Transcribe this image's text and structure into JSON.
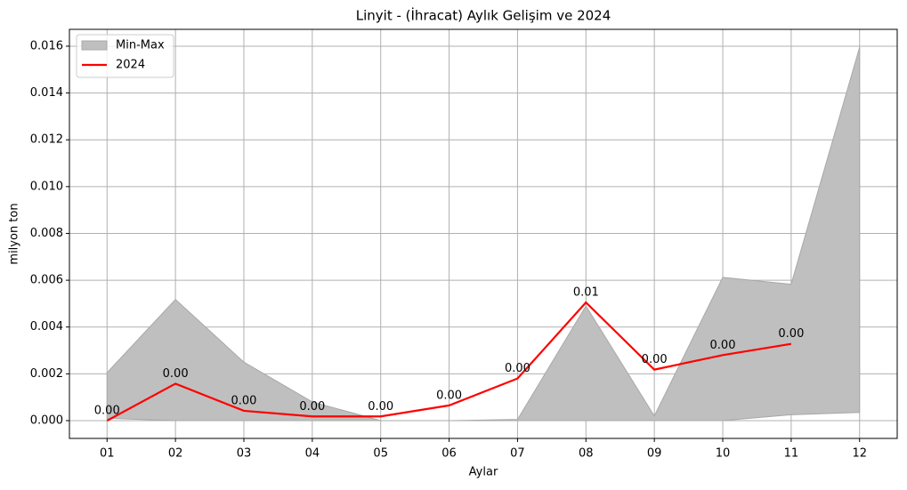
{
  "chart_data": {
    "type": "line",
    "title": "Linyit - (İhracat) Aylık Gelişim ve 2024",
    "xlabel": "Aylar",
    "ylabel": "milyon ton",
    "categories": [
      "01",
      "02",
      "03",
      "04",
      "05",
      "06",
      "07",
      "08",
      "09",
      "10",
      "11",
      "12"
    ],
    "series": [
      {
        "name": "Min-Max",
        "kind": "band",
        "color": "#bfbfbf",
        "edge": "#a8a8a8",
        "lower": [
          0.0001,
          0,
          0,
          0,
          0,
          0,
          0,
          0,
          0,
          0,
          0.00025,
          0.00035
        ],
        "values": [
          0.00205,
          0.00518,
          0.0025,
          0.0008,
          0,
          0,
          5e-05,
          0.0049,
          0.0002,
          0.00612,
          0.00583,
          0.01595
        ]
      },
      {
        "name": "2024",
        "kind": "line",
        "color": "#ff0000",
        "values": [
          0.0,
          0.00158,
          0.00042,
          0.00018,
          0.00018,
          0.00065,
          0.0018,
          0.00505,
          0.00218,
          0.0028,
          0.00328,
          null
        ],
        "value_labels": [
          "0.00",
          "0.00",
          "0.00",
          "0.00",
          "0.00",
          "0.00",
          "0.00",
          "0.01",
          "0.00",
          "0.00",
          "0.00",
          null
        ]
      }
    ],
    "ylim": [
      -0.00076,
      0.01672
    ],
    "yticks": [
      {
        "value": 0,
        "label": "0.000"
      },
      {
        "value": 0.002,
        "label": "0.002"
      },
      {
        "value": 0.004,
        "label": "0.004"
      },
      {
        "value": 0.006,
        "label": "0.006"
      },
      {
        "value": 0.008,
        "label": "0.008"
      },
      {
        "value": 0.01,
        "label": "0.010"
      },
      {
        "value": 0.012,
        "label": "0.012"
      },
      {
        "value": 0.014,
        "label": "0.014"
      },
      {
        "value": 0.016,
        "label": "0.016"
      }
    ],
    "grid": true,
    "legend": "upper left"
  }
}
